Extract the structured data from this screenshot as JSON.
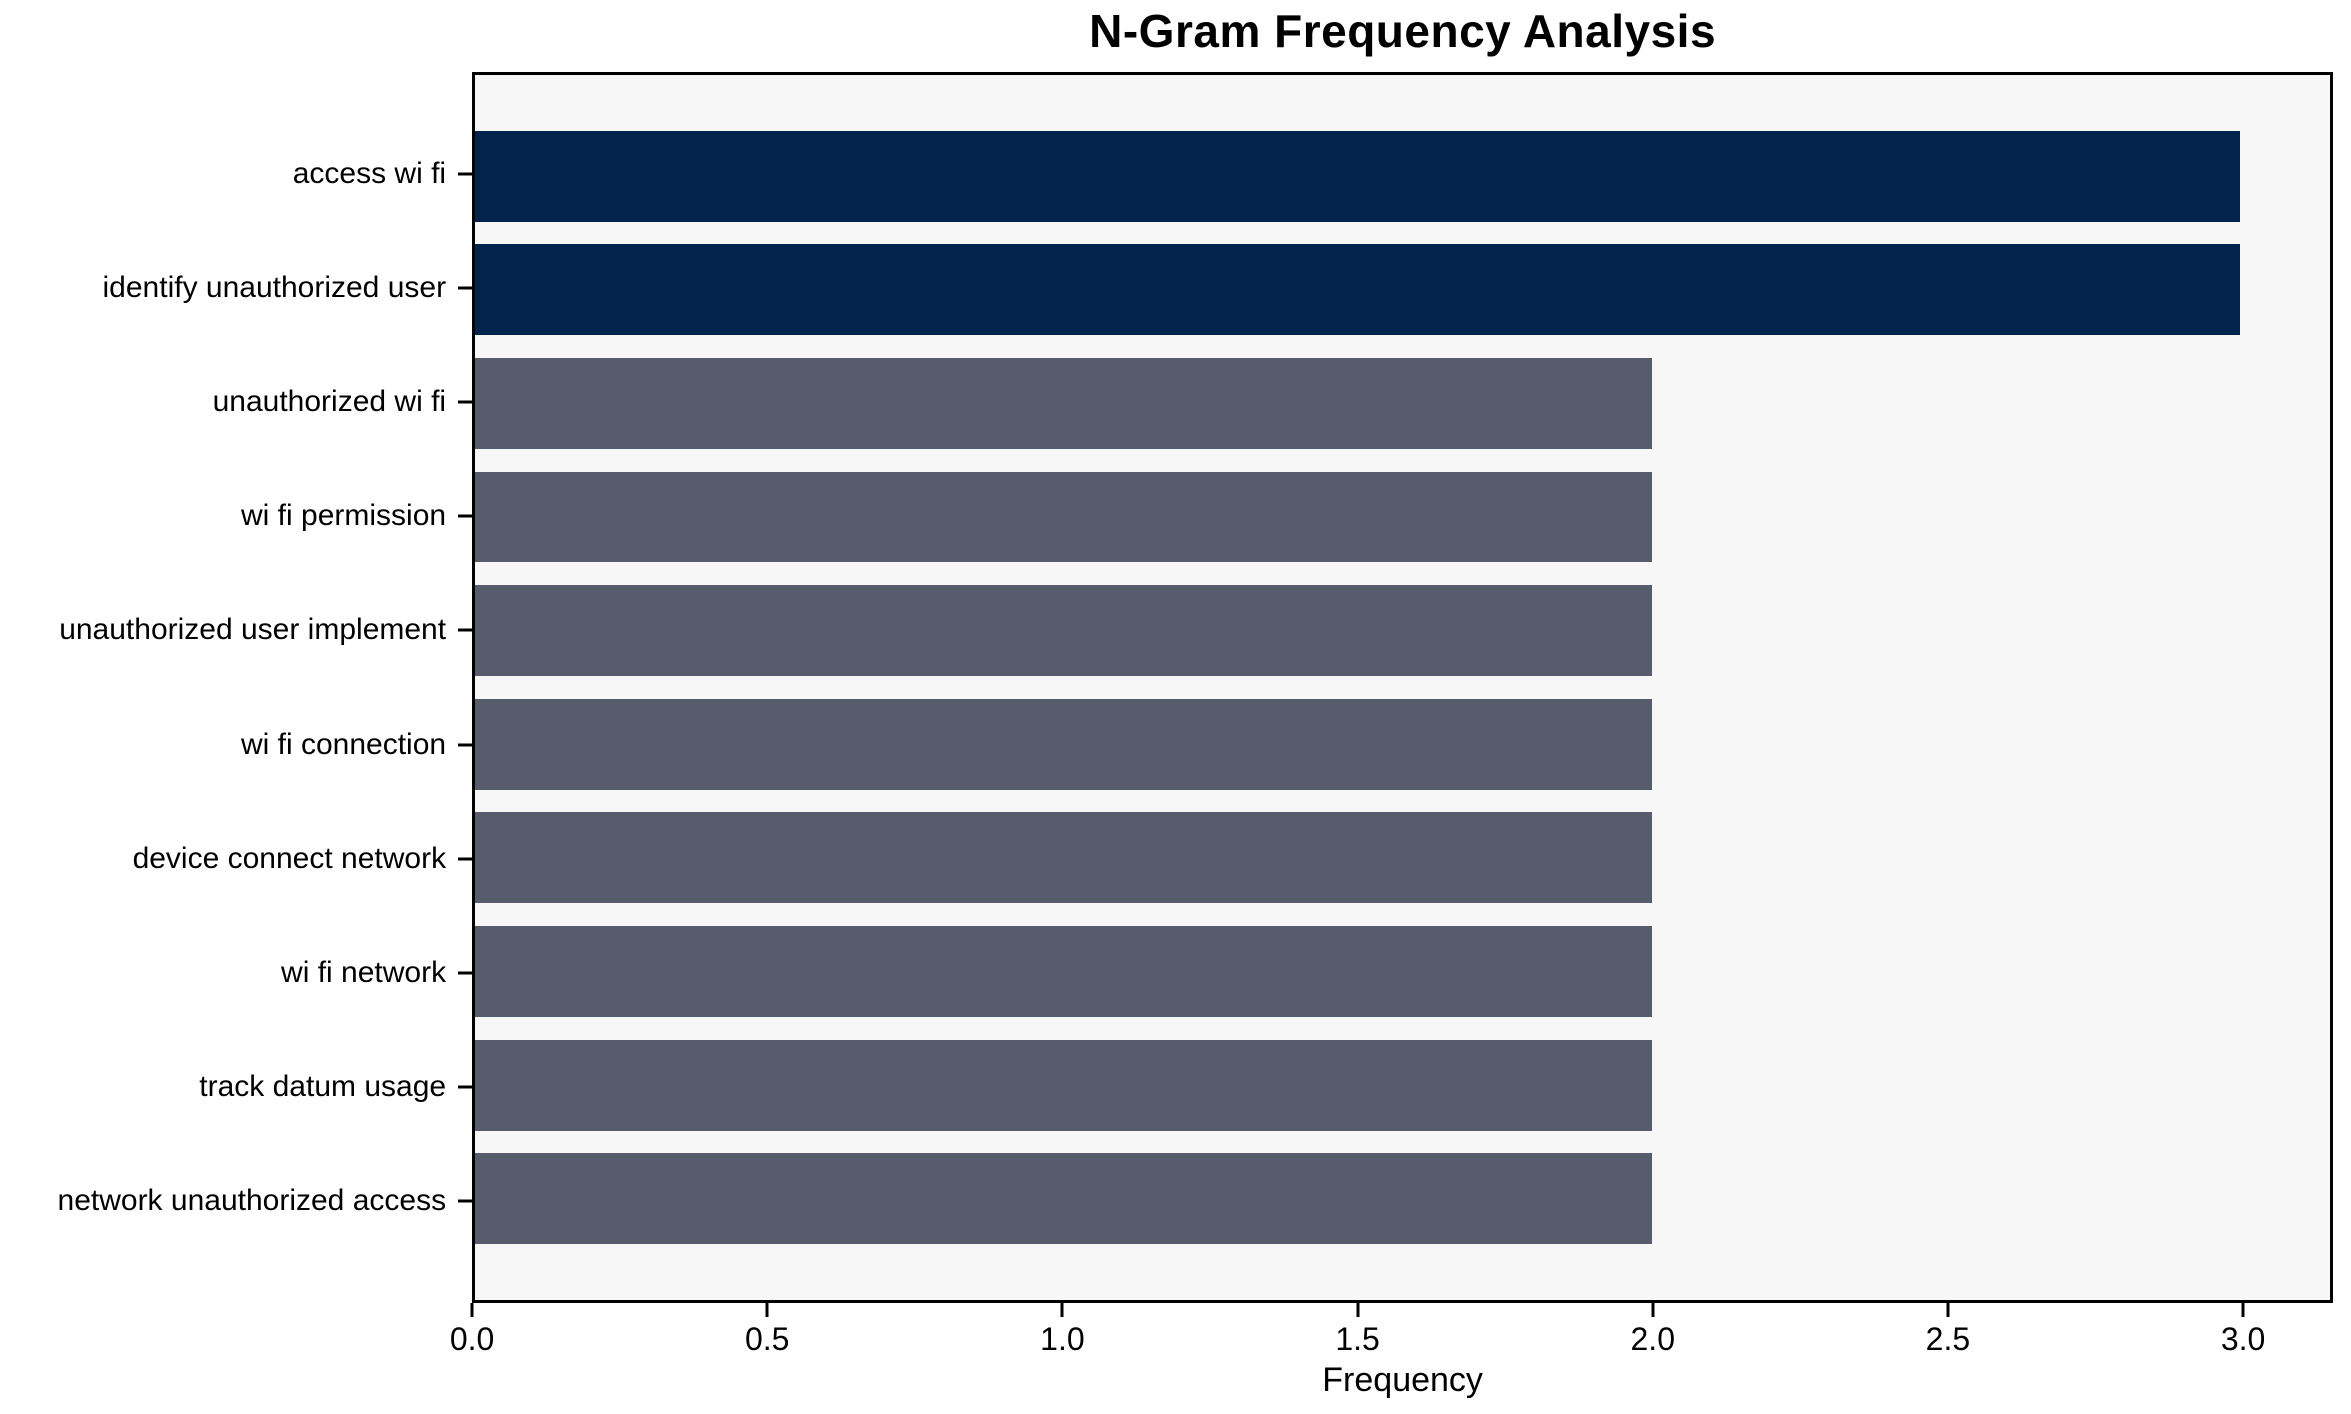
{
  "chart_data": {
    "type": "bar",
    "orientation": "horizontal",
    "title": "N-Gram Frequency Analysis",
    "xlabel": "Frequency",
    "ylabel": "",
    "categories": [
      "access wi fi",
      "identify unauthorized user",
      "unauthorized wi fi",
      "wi fi permission",
      "unauthorized user implement",
      "wi fi connection",
      "device connect network",
      "wi fi network",
      "track datum usage",
      "network unauthorized access"
    ],
    "values": [
      3,
      3,
      2,
      2,
      2,
      2,
      2,
      2,
      2,
      2
    ],
    "bar_colors": [
      "#02234c",
      "#02234c",
      "#565c6b",
      "#565c6b",
      "#565c6b",
      "#565c6b",
      "#565c6b",
      "#565c6b",
      "#565c6b",
      "#565c6b"
    ],
    "x_ticks": [
      "0.0",
      "0.5",
      "1.0",
      "1.5",
      "2.0",
      "2.5",
      "3.0"
    ],
    "x_tick_values": [
      0,
      0.5,
      1,
      1.5,
      2,
      2.5,
      3
    ],
    "xlim": [
      0,
      3.1525
    ],
    "grid": false,
    "legend_position": "none",
    "colors": {
      "highlight": "#02234c",
      "default": "#565c6b",
      "plot_background": "#f7f7f7",
      "figure_background": "#ffffff",
      "spine": "#000000",
      "text": "#000000"
    }
  }
}
